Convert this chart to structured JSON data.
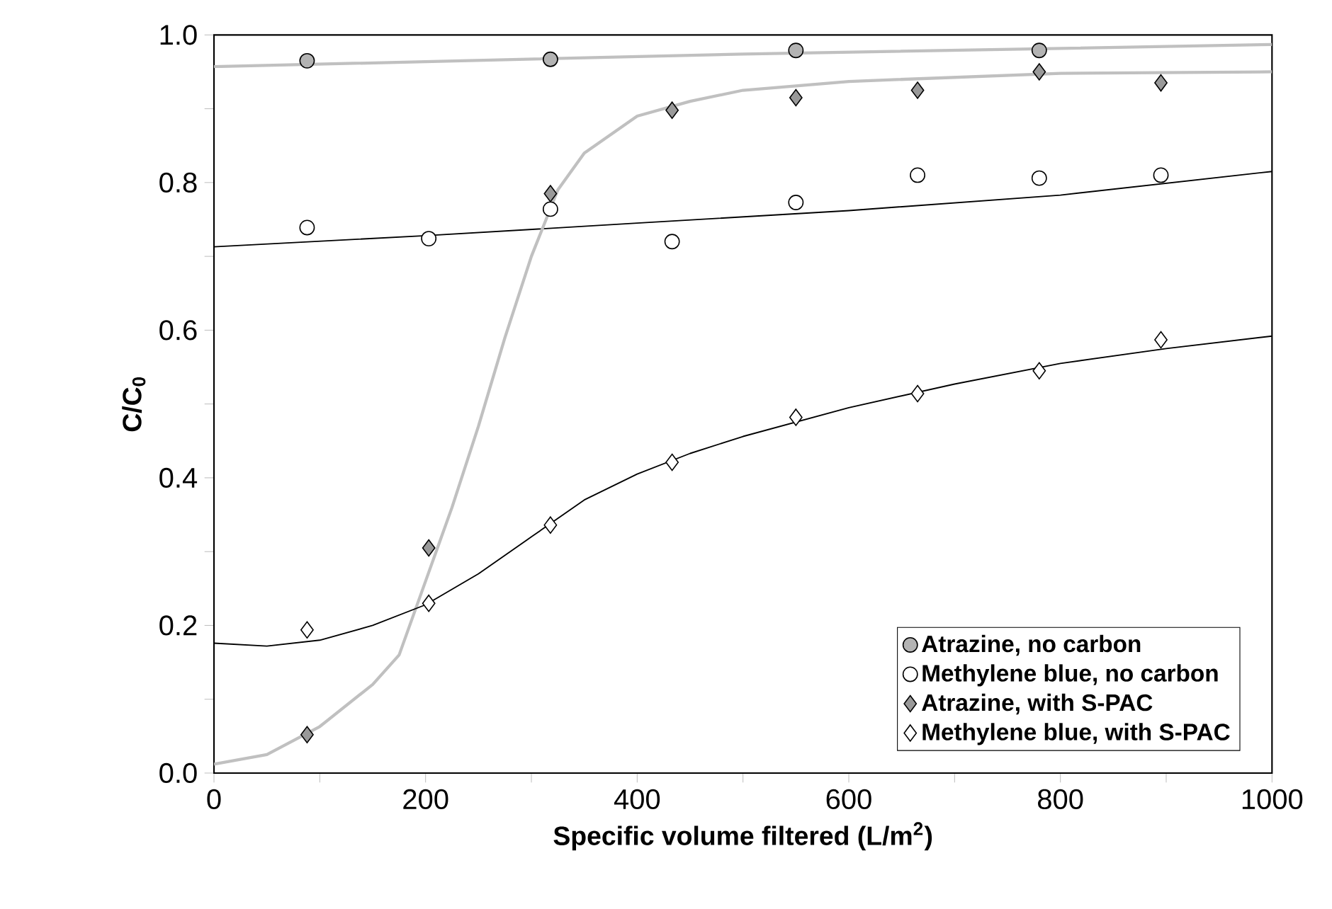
{
  "chart_data": {
    "type": "scatter",
    "xlabel": "**Specific volume filtered (L/m$^{2}$)**",
    "ylabel": "**C/C$_{0}$**",
    "xlim": [
      0,
      1000
    ],
    "ylim": [
      0,
      1
    ],
    "xticks": [
      0,
      {
        "value": 100,
        "label": null
      },
      200,
      {
        "value": 300,
        "label": null
      },
      400,
      {
        "value": 500,
        "label": null
      },
      600,
      {
        "value": 700,
        "label": null
      },
      800,
      {
        "value": 900,
        "label": null
      },
      1000
    ],
    "yticks": [
      {
        "value": 0,
        "label": "0.0"
      },
      {
        "value": 0.1,
        "label": null
      },
      {
        "value": 0.2,
        "label": "0.2"
      },
      {
        "value": 0.3,
        "label": null
      },
      {
        "value": 0.4,
        "label": "0.4"
      },
      {
        "value": 0.5,
        "label": null
      },
      {
        "value": 0.6,
        "label": "0.6"
      },
      {
        "value": 0.7,
        "label": null
      },
      {
        "value": 0.8,
        "label": "0.8"
      },
      {
        "value": 0.9,
        "label": null
      },
      {
        "value": 1,
        "label": "1.0"
      }
    ],
    "grid": false,
    "legend": "bottom right",
    "series": [
      {
        "type": "line",
        "color": "#c0c0c0",
        "marker": "none",
        "x": [
          0,
          500,
          1000
        ],
        "values": [
          0.957,
          0.974,
          0.987
        ]
      },
      {
        "type": "line",
        "color": "#000000",
        "marker": "none",
        "x": [
          0,
          200,
          400,
          600,
          800,
          1000
        ],
        "values": [
          0.713,
          0.728,
          0.745,
          0.762,
          0.783,
          0.815
        ]
      },
      {
        "type": "line",
        "color": "#c0c0c0",
        "marker": "none",
        "x": [
          0,
          50,
          100,
          150,
          175,
          200,
          225,
          250,
          275,
          300,
          325,
          350,
          400,
          450,
          500,
          600,
          800,
          1000
        ],
        "values": [
          0.012,
          0.025,
          0.063,
          0.12,
          0.16,
          0.26,
          0.36,
          0.47,
          0.59,
          0.7,
          0.79,
          0.84,
          0.89,
          0.91,
          0.925,
          0.937,
          0.948,
          0.95
        ]
      },
      {
        "type": "line",
        "color": "#000000",
        "marker": "none",
        "x": [
          0,
          50,
          100,
          150,
          200,
          250,
          300,
          350,
          400,
          450,
          500,
          600,
          700,
          800,
          900,
          1000
        ],
        "values": [
          0.176,
          0.172,
          0.18,
          0.2,
          0.228,
          0.27,
          0.32,
          0.37,
          0.405,
          0.433,
          0.456,
          0.495,
          0.527,
          0.555,
          0.575,
          0.592
        ]
      },
      {
        "name": "Atrazine, no carbon",
        "color": "#b3b3b3",
        "marker": "circle",
        "x": [
          88,
          318,
          550,
          780
        ],
        "values": [
          0.965,
          0.967,
          0.979,
          0.979
        ]
      },
      {
        "name": "Methylene blue, no carbon",
        "color": "#ffffff",
        "marker": "circle",
        "x": [
          88,
          203,
          318,
          433,
          550,
          665,
          780,
          895
        ],
        "values": [
          0.739,
          0.724,
          0.764,
          0.72,
          0.773,
          0.81,
          0.806,
          0.81
        ]
      },
      {
        "name": "Atrazine, with S-PAC",
        "color": "#999999",
        "marker": "diamond",
        "x": [
          88,
          203,
          318,
          433,
          550,
          665,
          780,
          895
        ],
        "values": [
          0.052,
          0.305,
          0.785,
          0.898,
          0.915,
          0.925,
          0.95,
          0.935
        ]
      },
      {
        "name": "Methylene blue, with S-PAC",
        "color": "#ffffff",
        "marker": "diamond",
        "x": [
          88,
          203,
          318,
          433,
          550,
          665,
          780,
          895
        ],
        "values": [
          0.194,
          0.23,
          0.336,
          0.421,
          0.482,
          0.514,
          0.545,
          0.587
        ]
      }
    ]
  }
}
